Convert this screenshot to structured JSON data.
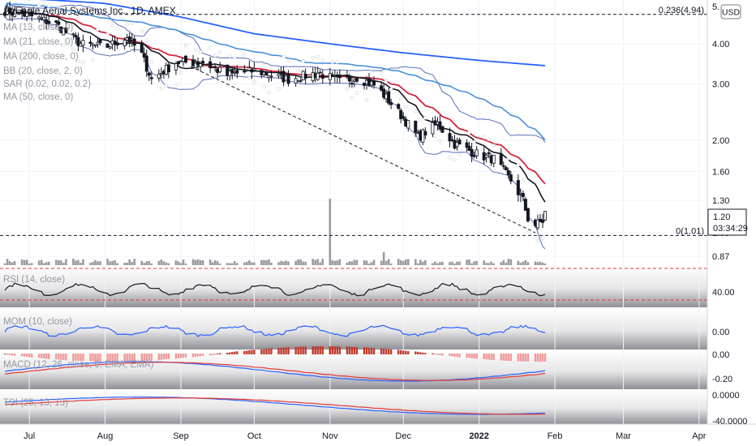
{
  "title": "AgEagle Aerial Systems Inc., 1D, AMEX",
  "currency": "USD",
  "price": {
    "last": "1.20",
    "countdown": "03:34:29"
  },
  "indicators": [
    "MA (13, close, 0)",
    "MA (21, close, 0)",
    "MA (200, close, 0)",
    "BB (20, close, 2, 0)",
    "SAR (0.02, 0.02, 0.2)",
    "MA (50, close, 0)"
  ],
  "fib_levels": [
    {
      "label": "0.236(4.94)",
      "value": 4.94
    },
    {
      "label": "0(1.01)",
      "value": 1.01
    }
  ],
  "sub_panes": [
    {
      "name": "RSI (14, close)",
      "ticks": [
        "40.00"
      ]
    },
    {
      "name": "MOM (10, close)",
      "ticks": [
        "0.00"
      ]
    },
    {
      "name": "MACD (12, 26, close, 9, EMA, EMA)",
      "ticks": [
        "0.00",
        "-0.20"
      ]
    },
    {
      "name": "TSI (25, 13, 13)",
      "ticks": [
        "0.0000",
        "-40.0000"
      ]
    }
  ],
  "chart_data": {
    "type": "candlestick",
    "title": "AgEagle Aerial Systems Inc., 1D, AMEX",
    "y_scale": "log",
    "y_ticks": [
      "5.",
      "4.00",
      "3.00",
      "2.00",
      "1.60",
      "1.30",
      "1.03",
      "0.87"
    ],
    "y_tick_values": [
      5.0,
      4.0,
      3.0,
      2.0,
      1.6,
      1.3,
      1.03,
      0.87
    ],
    "x_ticks": [
      "Jul",
      "Aug",
      "Sep",
      "Oct",
      "Nov",
      "Dec",
      "2022",
      "Feb",
      "Mar",
      "Apr"
    ],
    "ylim": [
      0.84,
      5.2
    ],
    "close_anchors": [
      [
        "2021-06-20",
        5.1
      ],
      [
        "2021-07-01",
        4.9
      ],
      [
        "2021-07-12",
        4.6
      ],
      [
        "2021-07-22",
        4.0
      ],
      [
        "2021-08-01",
        3.9
      ],
      [
        "2021-08-10",
        4.2
      ],
      [
        "2021-08-16",
        3.7
      ],
      [
        "2021-08-20",
        3.1
      ],
      [
        "2021-08-30",
        3.5
      ],
      [
        "2021-09-10",
        3.5
      ],
      [
        "2021-09-20",
        3.2
      ],
      [
        "2021-10-01",
        3.3
      ],
      [
        "2021-10-15",
        3.1
      ],
      [
        "2021-10-27",
        3.25
      ],
      [
        "2021-11-05",
        3.05
      ],
      [
        "2021-11-12",
        3.15
      ],
      [
        "2021-11-20",
        2.95
      ],
      [
        "2021-11-30",
        2.4
      ],
      [
        "2021-12-07",
        2.05
      ],
      [
        "2021-12-15",
        2.25
      ],
      [
        "2021-12-22",
        1.95
      ],
      [
        "2022-01-01",
        1.8
      ],
      [
        "2022-01-07",
        1.75
      ],
      [
        "2022-01-14",
        1.5
      ],
      [
        "2022-01-19",
        1.3
      ],
      [
        "2022-01-22",
        1.07
      ],
      [
        "2022-01-27",
        1.12
      ],
      [
        "2022-01-28",
        1.2
      ]
    ],
    "ma200_anchors": [
      [
        "2021-06-20",
        5.6
      ],
      [
        "2021-08-01",
        5.35
      ],
      [
        "2021-09-01",
        4.85
      ],
      [
        "2021-10-01",
        4.3
      ],
      [
        "2021-11-01",
        4.0
      ],
      [
        "2021-12-01",
        3.75
      ],
      [
        "2022-01-01",
        3.55
      ],
      [
        "2022-01-28",
        3.42
      ]
    ]
  }
}
